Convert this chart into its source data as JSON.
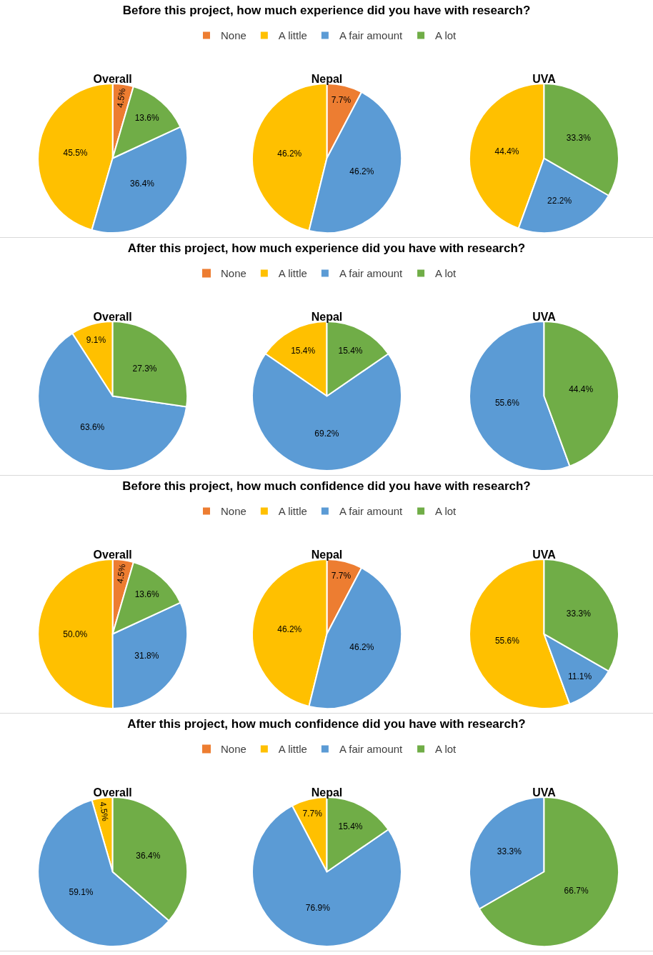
{
  "chart_data": [
    {
      "type": "pie",
      "subtitle": "Before this project, how much experience did you have with research?",
      "legend": "top",
      "title": "Overall",
      "categories": [
        "None",
        "A little",
        "A fair amount",
        "A lot"
      ],
      "values": [
        4.5,
        45.5,
        36.4,
        13.6
      ],
      "value_labels": [
        "4.5%",
        "45.5%",
        "36.4%",
        "13.6%"
      ],
      "colors": [
        "#ed7d31",
        "#ffc000",
        "#5b9bd5",
        "#70ad47"
      ]
    },
    {
      "type": "pie",
      "title": "Nepal",
      "categories": [
        null,
        null,
        null,
        null
      ],
      "values": [
        7.7,
        46.2,
        46.2,
        0
      ],
      "value_labels": [
        "7.7%",
        "46.2%",
        "46.2%",
        null
      ],
      "colors": [
        "#ed7d31",
        "#ffc000",
        "#5b9bd5",
        "#70ad47"
      ]
    },
    {
      "type": "pie",
      "title": "UVA",
      "categories": [
        null,
        null,
        null,
        null
      ],
      "values": [
        0,
        44.4,
        22.2,
        33.3
      ],
      "value_labels": [
        null,
        "44.4%",
        "22.2%",
        "33.3%"
      ],
      "colors": [
        "#ed7d31",
        "#ffc000",
        "#5b9bd5",
        "#70ad47"
      ]
    },
    {
      "type": "pie",
      "subtitle": "After this project, how much experience did you have with research?",
      "legend": "top",
      "title": "Overall",
      "categories": [
        "None",
        "A little",
        "A fair amount",
        "A lot"
      ],
      "values": [
        0,
        9.1,
        63.6,
        27.3
      ],
      "value_labels": [
        null,
        "9.1%",
        "63.6%",
        "27.3%"
      ],
      "colors": [
        "#ed7d31",
        "#ffc000",
        "#5b9bd5",
        "#70ad47"
      ]
    },
    {
      "type": "pie",
      "title": "Nepal",
      "categories": [
        null,
        null,
        null,
        null
      ],
      "values": [
        0,
        15.4,
        69.2,
        15.4
      ],
      "value_labels": [
        null,
        "15.4%",
        "69.2%",
        "15.4%"
      ],
      "colors": [
        "#ed7d31",
        "#ffc000",
        "#5b9bd5",
        "#70ad47"
      ]
    },
    {
      "type": "pie",
      "title": "UVA",
      "categories": [
        null,
        null,
        null,
        null
      ],
      "values": [
        0,
        0,
        55.6,
        44.4
      ],
      "value_labels": [
        null,
        null,
        "55.6%",
        "44.4%"
      ],
      "colors": [
        "#ed7d31",
        "#ffc000",
        "#5b9bd5",
        "#70ad47"
      ]
    },
    {
      "type": "pie",
      "subtitle": "Before this project, how much confidence did you have with research?",
      "legend": "top",
      "title": "Overall",
      "categories": [
        "None",
        "A little",
        "A fair amount",
        "A lot"
      ],
      "values": [
        4.5,
        50.0,
        31.8,
        13.6
      ],
      "value_labels": [
        "4.5%",
        "50.0%",
        "31.8%",
        "13.6%"
      ],
      "colors": [
        "#ed7d31",
        "#ffc000",
        "#5b9bd5",
        "#70ad47"
      ]
    },
    {
      "type": "pie",
      "title": "Nepal",
      "categories": [
        null,
        null,
        null,
        null
      ],
      "values": [
        7.7,
        46.2,
        46.2,
        0
      ],
      "value_labels": [
        "7.7%",
        "46.2%",
        "46.2%",
        null
      ],
      "colors": [
        "#ed7d31",
        "#ffc000",
        "#5b9bd5",
        "#70ad47"
      ]
    },
    {
      "type": "pie",
      "title": "UVA",
      "categories": [
        null,
        null,
        null,
        null
      ],
      "values": [
        0,
        55.6,
        11.1,
        33.3
      ],
      "value_labels": [
        null,
        "55.6%",
        "11.1%",
        "33.3%"
      ],
      "colors": [
        "#ed7d31",
        "#ffc000",
        "#5b9bd5",
        "#70ad47"
      ]
    },
    {
      "type": "pie",
      "subtitle": "After this project, how much confidence did you have with research?",
      "legend": "top",
      "title": "Overall",
      "categories": [
        "None",
        "A little",
        "A fair amount",
        "A lot"
      ],
      "values": [
        0,
        4.5,
        59.1,
        36.4
      ],
      "value_labels": [
        null,
        "4.5%",
        "59.1%",
        "36.4%"
      ],
      "colors": [
        "#ed7d31",
        "#ffc000",
        "#5b9bd5",
        "#70ad47"
      ]
    },
    {
      "type": "pie",
      "title": "Nepal",
      "categories": [
        null,
        null,
        null,
        null
      ],
      "values": [
        0,
        7.7,
        76.9,
        15.4
      ],
      "value_labels": [
        null,
        "7.7%",
        "76.9%",
        "15.4%"
      ],
      "colors": [
        "#ed7d31",
        "#ffc000",
        "#5b9bd5",
        "#70ad47"
      ]
    },
    {
      "type": "pie",
      "title": "UVA",
      "categories": [
        null,
        null,
        null,
        null
      ],
      "values": [
        0,
        0,
        33.3,
        66.7
      ],
      "value_labels": [
        null,
        null,
        "33.3%",
        "66.7%"
      ],
      "colors": [
        "#ed7d31",
        "#ffc000",
        "#5b9bd5",
        "#70ad47"
      ]
    }
  ]
}
